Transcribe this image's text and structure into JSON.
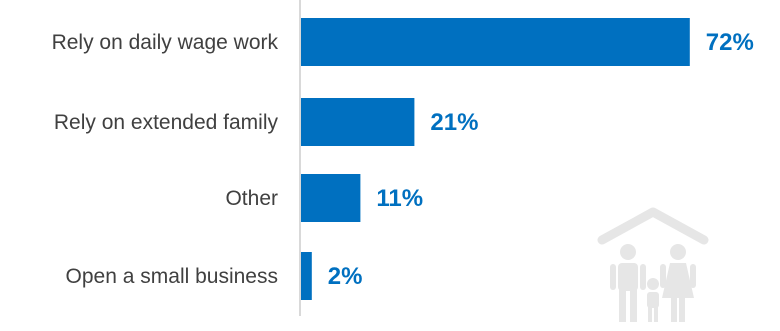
{
  "chart_data": {
    "type": "bar",
    "orientation": "horizontal",
    "categories": [
      "Rely on daily wage work",
      "Rely on extended family",
      "Other",
      "Open a small business"
    ],
    "values": [
      72,
      21,
      11,
      2
    ],
    "value_labels": [
      "72%",
      "21%",
      "11%",
      "2%"
    ],
    "unit": "%",
    "title": "",
    "xlabel": "",
    "ylabel": "",
    "xlim": [
      0,
      100
    ],
    "grid": false,
    "legend": "none",
    "colors": {
      "bar": "#0070C0",
      "value_label": "#0070C0",
      "category_label": "#404040",
      "axis": "#d9d9d9"
    }
  },
  "decoration": {
    "icon": "family-under-roof-icon",
    "color": "#e6e6e6"
  }
}
